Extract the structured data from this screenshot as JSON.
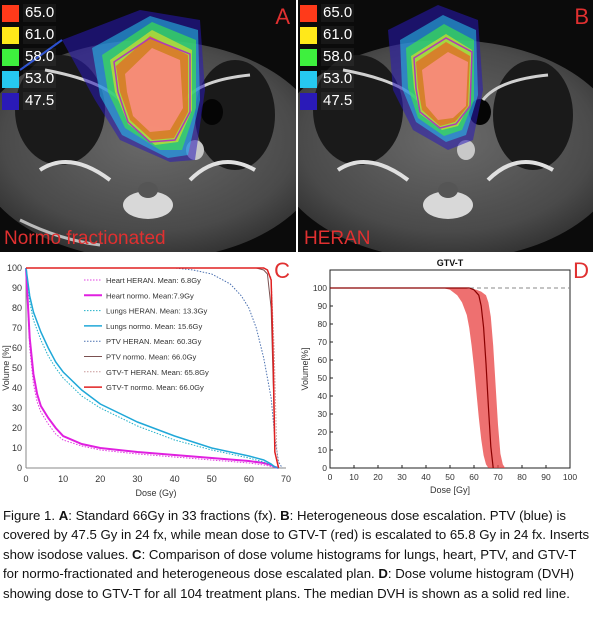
{
  "panels": {
    "A": {
      "letter": "A",
      "plan_label": "Normo fractionated"
    },
    "B": {
      "letter": "B",
      "plan_label": "HERAN"
    },
    "C": {
      "letter": "C"
    },
    "D": {
      "letter": "D"
    }
  },
  "isodose_legend": [
    {
      "value": "65.0",
      "color": "#ff3a1a"
    },
    {
      "value": "61.0",
      "color": "#ffe81a"
    },
    {
      "value": "58.0",
      "color": "#3ef03e"
    },
    {
      "value": "53.0",
      "color": "#26c8f0"
    },
    {
      "value": "47.5",
      "color": "#2a1ab8"
    }
  ],
  "chart_data": [
    {
      "type": "line",
      "panel": "C",
      "xlabel": "Dose (Gy)",
      "ylabel": "Volume [%]",
      "xlim": [
        0,
        70
      ],
      "ylim": [
        0,
        100
      ],
      "xticks": [
        0,
        10,
        20,
        30,
        40,
        50,
        60,
        70
      ],
      "yticks": [
        0,
        10,
        20,
        30,
        40,
        50,
        60,
        70,
        80,
        90,
        100
      ],
      "legend_position": "top-right",
      "series": [
        {
          "name": "Heart HERAN. Mean: 6.8Gy",
          "color": "#e040e0",
          "dash": "dotted",
          "width": 1,
          "x": [
            0,
            1,
            2,
            3,
            4,
            6,
            8,
            10,
            15,
            20,
            30,
            40,
            50,
            60,
            64,
            66,
            67,
            68
          ],
          "y": [
            100,
            60,
            42,
            33,
            28,
            22,
            17,
            14,
            11,
            9,
            7,
            5.5,
            4,
            2.5,
            1.5,
            0.8,
            0.3,
            0
          ]
        },
        {
          "name": "Heart normo. Mean:7.9Gy",
          "color": "#e020e0",
          "dash": "solid",
          "width": 2,
          "x": [
            0,
            1,
            2,
            3,
            4,
            6,
            8,
            10,
            15,
            20,
            30,
            40,
            50,
            60,
            64,
            66,
            67,
            68
          ],
          "y": [
            100,
            65,
            47,
            37,
            31,
            25,
            20,
            16,
            12,
            10,
            8,
            6.5,
            5,
            3.5,
            2.5,
            1.5,
            0.5,
            0
          ]
        },
        {
          "name": "Lungs HERAN. Mean: 13.3Gy",
          "color": "#20b0c8",
          "dash": "dotted",
          "width": 1,
          "x": [
            0,
            1,
            2,
            4,
            6,
            8,
            10,
            15,
            20,
            30,
            40,
            50,
            60,
            64,
            66,
            67,
            68
          ],
          "y": [
            100,
            83,
            74,
            64,
            56,
            50,
            45,
            36,
            30,
            21,
            14,
            9,
            5,
            3,
            1.5,
            0.5,
            0
          ]
        },
        {
          "name": "Lungs normo. Mean: 15.6Gy",
          "color": "#20a8d8",
          "dash": "solid",
          "width": 1.5,
          "x": [
            0,
            1,
            2,
            4,
            6,
            8,
            10,
            15,
            20,
            30,
            40,
            50,
            60,
            64,
            66,
            67,
            68
          ],
          "y": [
            100,
            86,
            78,
            68,
            60,
            53,
            48,
            39,
            32,
            23,
            16,
            10,
            6,
            4,
            2,
            0.5,
            0
          ]
        },
        {
          "name": "PTV HERAN. Mean: 60.3Gy",
          "color": "#4a70b0",
          "dash": "dotted",
          "width": 1,
          "x": [
            0,
            40,
            45,
            50,
            55,
            58,
            60,
            62,
            64,
            66,
            67,
            68,
            69
          ],
          "y": [
            100,
            100,
            99,
            97,
            92,
            86,
            80,
            70,
            55,
            35,
            15,
            3,
            0
          ]
        },
        {
          "name": "PTV normo. Mean: 66.0Gy",
          "color": "#7a5050",
          "dash": "solid",
          "width": 1,
          "x": [
            0,
            62,
            64,
            65,
            66,
            66.6,
            67,
            68
          ],
          "y": [
            100,
            100,
            99,
            97,
            80,
            40,
            8,
            0
          ]
        },
        {
          "name": "GTV-T HERAN. Mean: 65.8Gy",
          "color": "#c89898",
          "dash": "dotted",
          "width": 1,
          "x": [
            0,
            64,
            65,
            66,
            66.8,
            67.5,
            68
          ],
          "y": [
            100,
            100,
            99,
            95,
            60,
            10,
            0
          ]
        },
        {
          "name": "GTV-T normo. Mean: 66.0Gy",
          "color": "#e02020",
          "dash": "solid",
          "width": 1.5,
          "x": [
            0,
            64,
            65,
            66,
            66.6,
            67,
            68
          ],
          "y": [
            100,
            100,
            99,
            94,
            50,
            8,
            0
          ]
        }
      ]
    },
    {
      "type": "line",
      "panel": "D",
      "title": "GTV-T",
      "xlabel": "Dose [Gy]",
      "ylabel": "Volume[%]",
      "xlim": [
        0,
        100
      ],
      "ylim": [
        0,
        110
      ],
      "xticks": [
        0,
        10,
        20,
        30,
        40,
        50,
        60,
        70,
        80,
        90,
        100
      ],
      "yticks": [
        0,
        10,
        20,
        30,
        40,
        50,
        60,
        70,
        80,
        90,
        100
      ],
      "reference_line_y": 100,
      "band": {
        "color": "#e84040",
        "upper": {
          "x": [
            0,
            55,
            58,
            61,
            63,
            65,
            66,
            67,
            68,
            69,
            70,
            71,
            72,
            73
          ],
          "y": [
            100,
            100,
            99.5,
            99,
            98,
            96,
            92,
            84,
            68,
            46,
            24,
            8,
            2,
            0
          ]
        },
        "lower": {
          "x": [
            0,
            47,
            50,
            53,
            55,
            57,
            58,
            59,
            60,
            61,
            62,
            63,
            64,
            65,
            66
          ],
          "y": [
            100,
            100,
            99,
            96,
            92,
            85,
            78,
            68,
            56,
            42,
            28,
            16,
            7,
            2,
            0
          ]
        }
      },
      "median": {
        "color": "#8a0000",
        "x": [
          0,
          58,
          60,
          62,
          63,
          64,
          65,
          66,
          67,
          68
        ],
        "y": [
          100,
          100,
          99,
          96,
          90,
          78,
          58,
          34,
          12,
          0
        ]
      }
    }
  ],
  "caption": {
    "seg1": "Figure 1. ",
    "A_label": "A",
    "A_text": ": Standard 66Gy in 33 fractions (fx). ",
    "B_label": "B",
    "B_text": ": Heterogeneous dose escalation. PTV (blue) is covered by 47.5 Gy in 24 fx, while mean dose to GTV-T (red) is escalated to 65.8 Gy in 24 fx. Inserts show isodose values. ",
    "C_label": "C",
    "C_text": ": Comparison of dose volume histograms for lungs, heart, PTV, and GTV-T for normo-fractionated and heterogeneous dose escalated plan. ",
    "D_label": "D",
    "D_text": ": Dose volume histogram (DVH) showing dose to GTV-T for all 104 treatment plans. The median DVH is shown as a solid red line."
  }
}
